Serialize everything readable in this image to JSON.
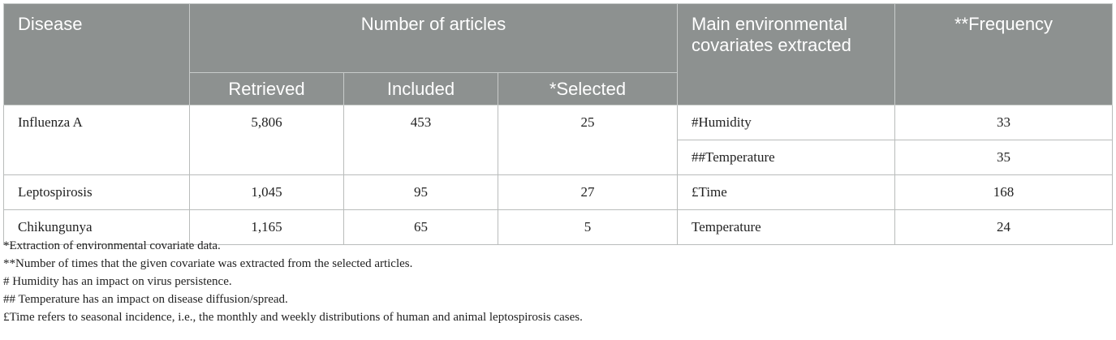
{
  "header": {
    "disease": "Disease",
    "number_of_articles": "Number of articles",
    "main_covariates": "Main environmental covariates extracted",
    "frequency": "**Frequency",
    "retrieved": "Retrieved",
    "included": "Included",
    "selected": "*Selected"
  },
  "rows": [
    {
      "disease": "Influenza A",
      "retrieved": "5,806",
      "included": "453",
      "selected": "25",
      "covariates": [
        {
          "name": "#Humidity",
          "frequency": "33"
        },
        {
          "name": "##Temperature",
          "frequency": "35"
        }
      ]
    },
    {
      "disease": "Leptospirosis",
      "retrieved": "1,045",
      "included": "95",
      "selected": "27",
      "covariates": [
        {
          "name": "£Time",
          "frequency": "168"
        }
      ]
    },
    {
      "disease": "Chikungunya",
      "retrieved": "1,165",
      "included": "65",
      "selected": "5",
      "covariates": [
        {
          "name": "Temperature",
          "frequency": "24"
        }
      ]
    }
  ],
  "footnotes": [
    "*Extraction of environmental covariate data.",
    "**Number of times that the given covariate was extracted from the selected articles.",
    "# Humidity has an impact on virus persistence.",
    "## Temperature has an impact on disease diffusion/spread.",
    "£Time refers to seasonal incidence, i.e., the monthly and weekly distributions of human and animal leptospirosis cases."
  ],
  "colors": {
    "header_bg": "#8d9190",
    "header_text": "#ffffff"
  }
}
